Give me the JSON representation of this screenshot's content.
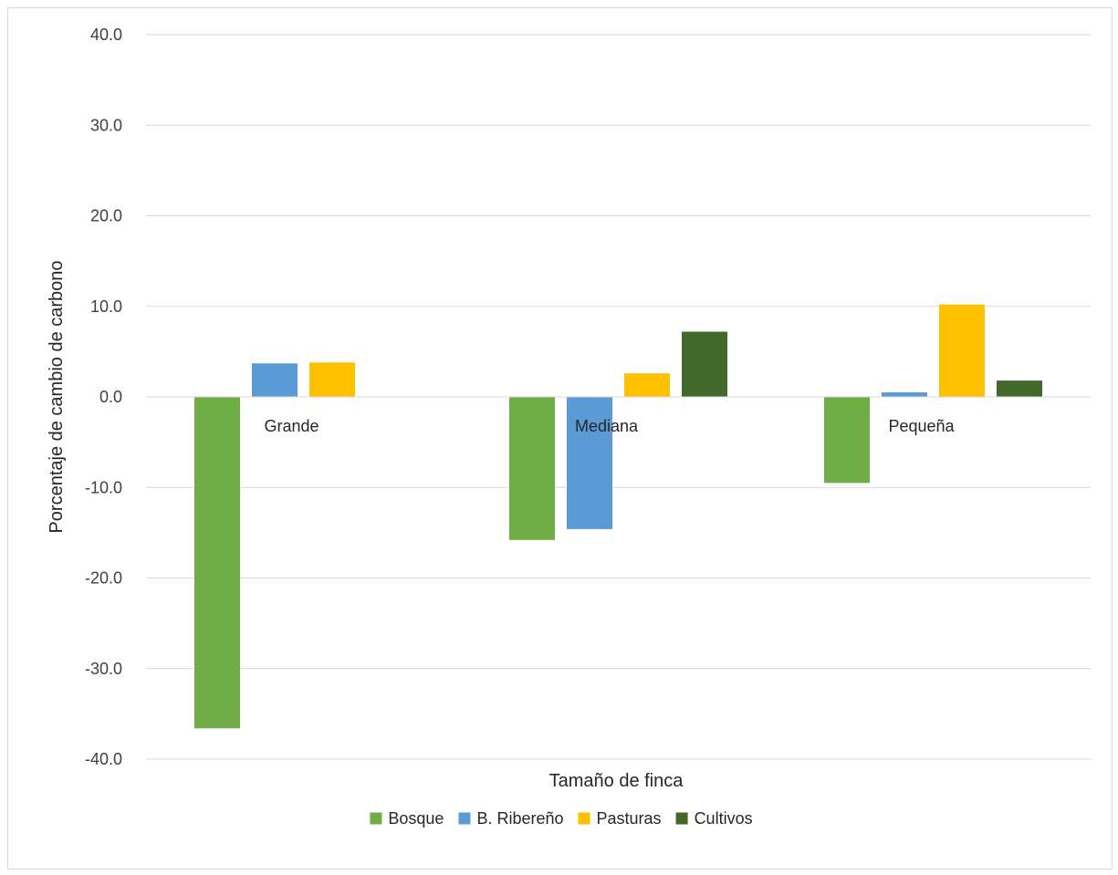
{
  "chart_data": {
    "type": "bar",
    "title": "",
    "xlabel": "Tamaño de finca",
    "ylabel": "Porcentaje de cambio de carbono",
    "ylim": [
      -40,
      40
    ],
    "yticks": [
      "40.0",
      "30.0",
      "20.0",
      "10.0",
      "0.0",
      "-10.0",
      "-20.0",
      "-30.0",
      "-40.0"
    ],
    "ytick_values": [
      40,
      30,
      20,
      10,
      0,
      -10,
      -20,
      -30,
      -40
    ],
    "categories": [
      "Grande",
      "Mediana",
      "Pequeña"
    ],
    "series": [
      {
        "name": "Bosque",
        "color": "#70ad47",
        "values": [
          -36.6,
          -15.8,
          -9.5
        ]
      },
      {
        "name": "B. Ribereño",
        "color": "#5b9bd5",
        "values": [
          3.7,
          -14.6,
          0.5
        ]
      },
      {
        "name": "Pasturas",
        "color": "#ffc000",
        "values": [
          3.8,
          2.6,
          10.2
        ]
      },
      {
        "name": "Cultivos",
        "color": "#43682b",
        "values": [
          0,
          7.2,
          1.8
        ]
      }
    ],
    "grid": true,
    "legend_position": "bottom"
  }
}
